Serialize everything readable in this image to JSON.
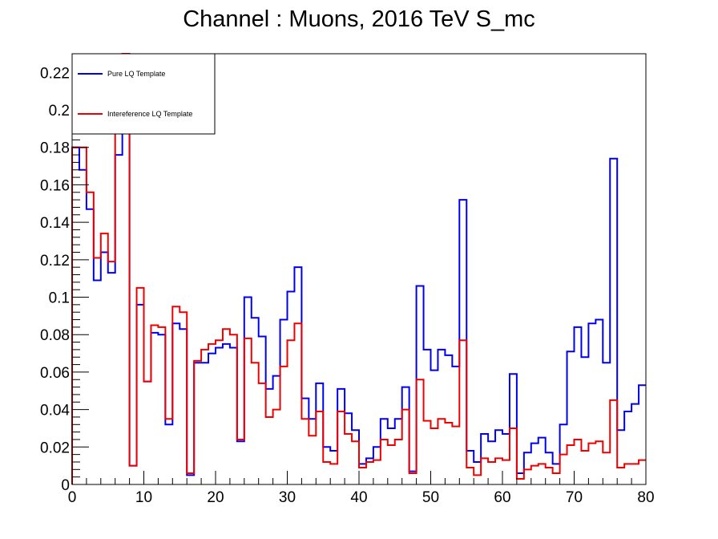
{
  "chart_data": {
    "type": "step",
    "title": "Channel : Muons, 2016 TeV S_mc",
    "xlabel": "",
    "ylabel": "",
    "xlim": [
      0,
      80
    ],
    "ylim": [
      0,
      0.23
    ],
    "x_ticks": [
      "0",
      "10",
      "20",
      "30",
      "40",
      "50",
      "60",
      "70",
      "80"
    ],
    "y_ticks": [
      "0",
      "0.02",
      "0.04",
      "0.06",
      "0.08",
      "0.1",
      "0.12",
      "0.14",
      "0.16",
      "0.18",
      "0.2",
      "0.22"
    ],
    "legend_position": "top-left",
    "grid": false,
    "bin_width": 1,
    "series": [
      {
        "name": "Pure LQ Template",
        "color": "#0000ee",
        "values": [
          0.18,
          0.168,
          0.147,
          0.109,
          0.124,
          0.113,
          0.176,
          0.23,
          0.01,
          0.096,
          0.055,
          0.081,
          0.08,
          0.032,
          0.086,
          0.083,
          0.005,
          0.065,
          0.065,
          0.07,
          0.073,
          0.075,
          0.073,
          0.023,
          0.1,
          0.089,
          0.079,
          0.051,
          0.058,
          0.088,
          0.103,
          0.116,
          0.046,
          0.035,
          0.054,
          0.02,
          0.018,
          0.051,
          0.038,
          0.029,
          0.011,
          0.014,
          0.02,
          0.035,
          0.03,
          0.035,
          0.052,
          0.007,
          0.106,
          0.072,
          0.061,
          0.072,
          0.069,
          0.063,
          0.152,
          0.018,
          0.012,
          0.027,
          0.023,
          0.029,
          0.027,
          0.059,
          0.006,
          0.017,
          0.022,
          0.025,
          0.017,
          0.011,
          0.032,
          0.071,
          0.084,
          0.068,
          0.086,
          0.088,
          0.065,
          0.174,
          0.029,
          0.039,
          0.043,
          0.053
        ]
      },
      {
        "name": "Intereference LQ Template",
        "color": "#ee0000",
        "values": [
          0.18,
          0.18,
          0.156,
          0.121,
          0.134,
          0.119,
          0.192,
          0.23,
          0.01,
          0.105,
          0.055,
          0.085,
          0.084,
          0.035,
          0.095,
          0.092,
          0.006,
          0.066,
          0.072,
          0.075,
          0.077,
          0.083,
          0.08,
          0.024,
          0.078,
          0.065,
          0.054,
          0.036,
          0.04,
          0.063,
          0.077,
          0.086,
          0.035,
          0.026,
          0.039,
          0.012,
          0.011,
          0.039,
          0.027,
          0.023,
          0.009,
          0.012,
          0.013,
          0.024,
          0.021,
          0.024,
          0.04,
          0.006,
          0.056,
          0.034,
          0.03,
          0.035,
          0.033,
          0.031,
          0.077,
          0.009,
          0.005,
          0.014,
          0.012,
          0.014,
          0.013,
          0.03,
          0.003,
          0.008,
          0.01,
          0.011,
          0.009,
          0.006,
          0.016,
          0.021,
          0.024,
          0.018,
          0.022,
          0.023,
          0.017,
          0.045,
          0.009,
          0.011,
          0.011,
          0.013
        ]
      }
    ]
  }
}
